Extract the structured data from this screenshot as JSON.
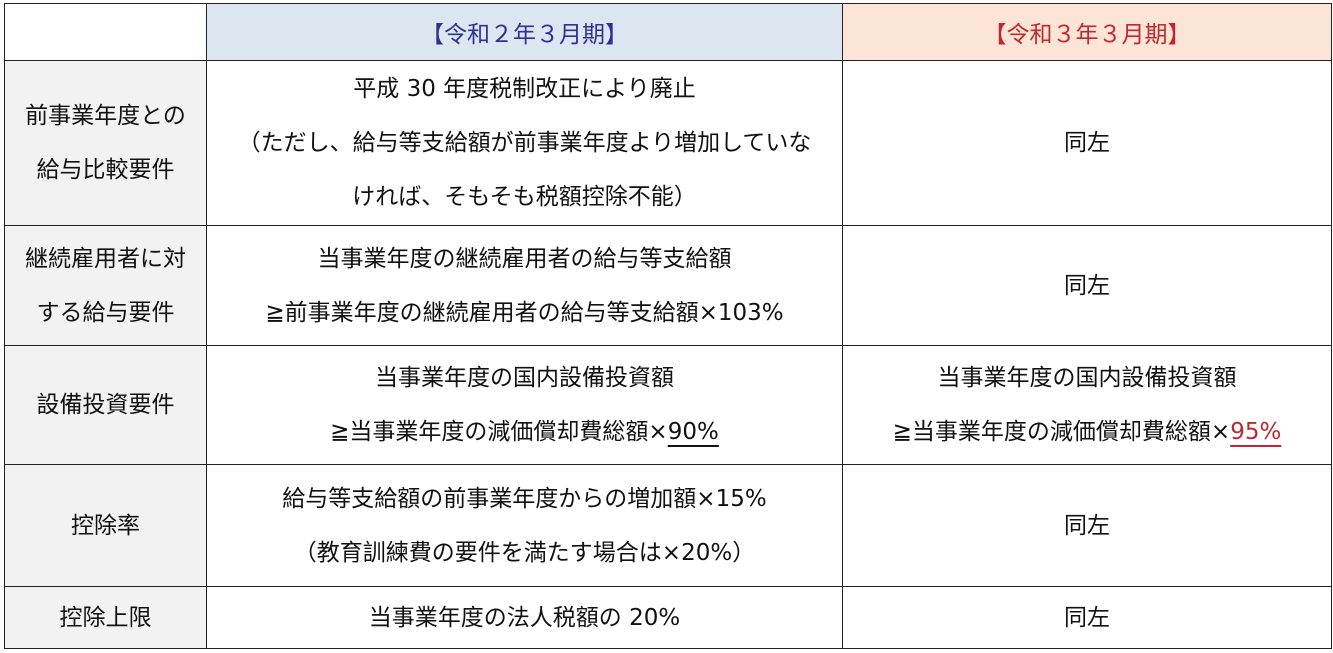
{
  "header": {
    "col0": "",
    "col1": "【令和２年３月期】",
    "col2": "【令和３年３月期】"
  },
  "rows": [
    {
      "label": [
        "前事業年度との",
        "給与比較要件"
      ],
      "r2": [
        "平成 30 年度税制改正により廃止",
        "（ただし、給与等支給額が前事業年度より増加していな",
        "ければ、そもそも税額控除不能）"
      ],
      "r3": [
        "同左"
      ]
    },
    {
      "label": [
        "継続雇用者に対",
        "する給与要件"
      ],
      "r2": [
        "当事業年度の継続雇用者の給与等支給額",
        "≧前事業年度の継続雇用者の給与等支給額×103%"
      ],
      "r3": [
        "同左"
      ]
    },
    {
      "label": [
        "設備投資要件"
      ],
      "r2": [
        "当事業年度の国内設備投資額",
        "≧当事業年度の減価償却費総額×",
        "90%"
      ],
      "r3": [
        "当事業年度の国内設備投資額",
        "≧当事業年度の減価償却費総額×",
        "95%"
      ]
    },
    {
      "label": [
        "控除率"
      ],
      "r2": [
        "給与等支給額の前事業年度からの増加額×15%",
        "（教育訓練費の要件を満たす場合は×20%）"
      ],
      "r3": [
        "同左"
      ]
    },
    {
      "label": [
        "控除上限"
      ],
      "r2": [
        "当事業年度の法人税額の 20%"
      ],
      "r3": [
        "同左"
      ]
    }
  ],
  "colors": {
    "r2_header_bg": "#dce6f1",
    "r2_header_text": "#2e3192",
    "r3_header_bg": "#fce4d6",
    "r3_header_text": "#c0282d",
    "label_bg": "#f2f2f2"
  }
}
